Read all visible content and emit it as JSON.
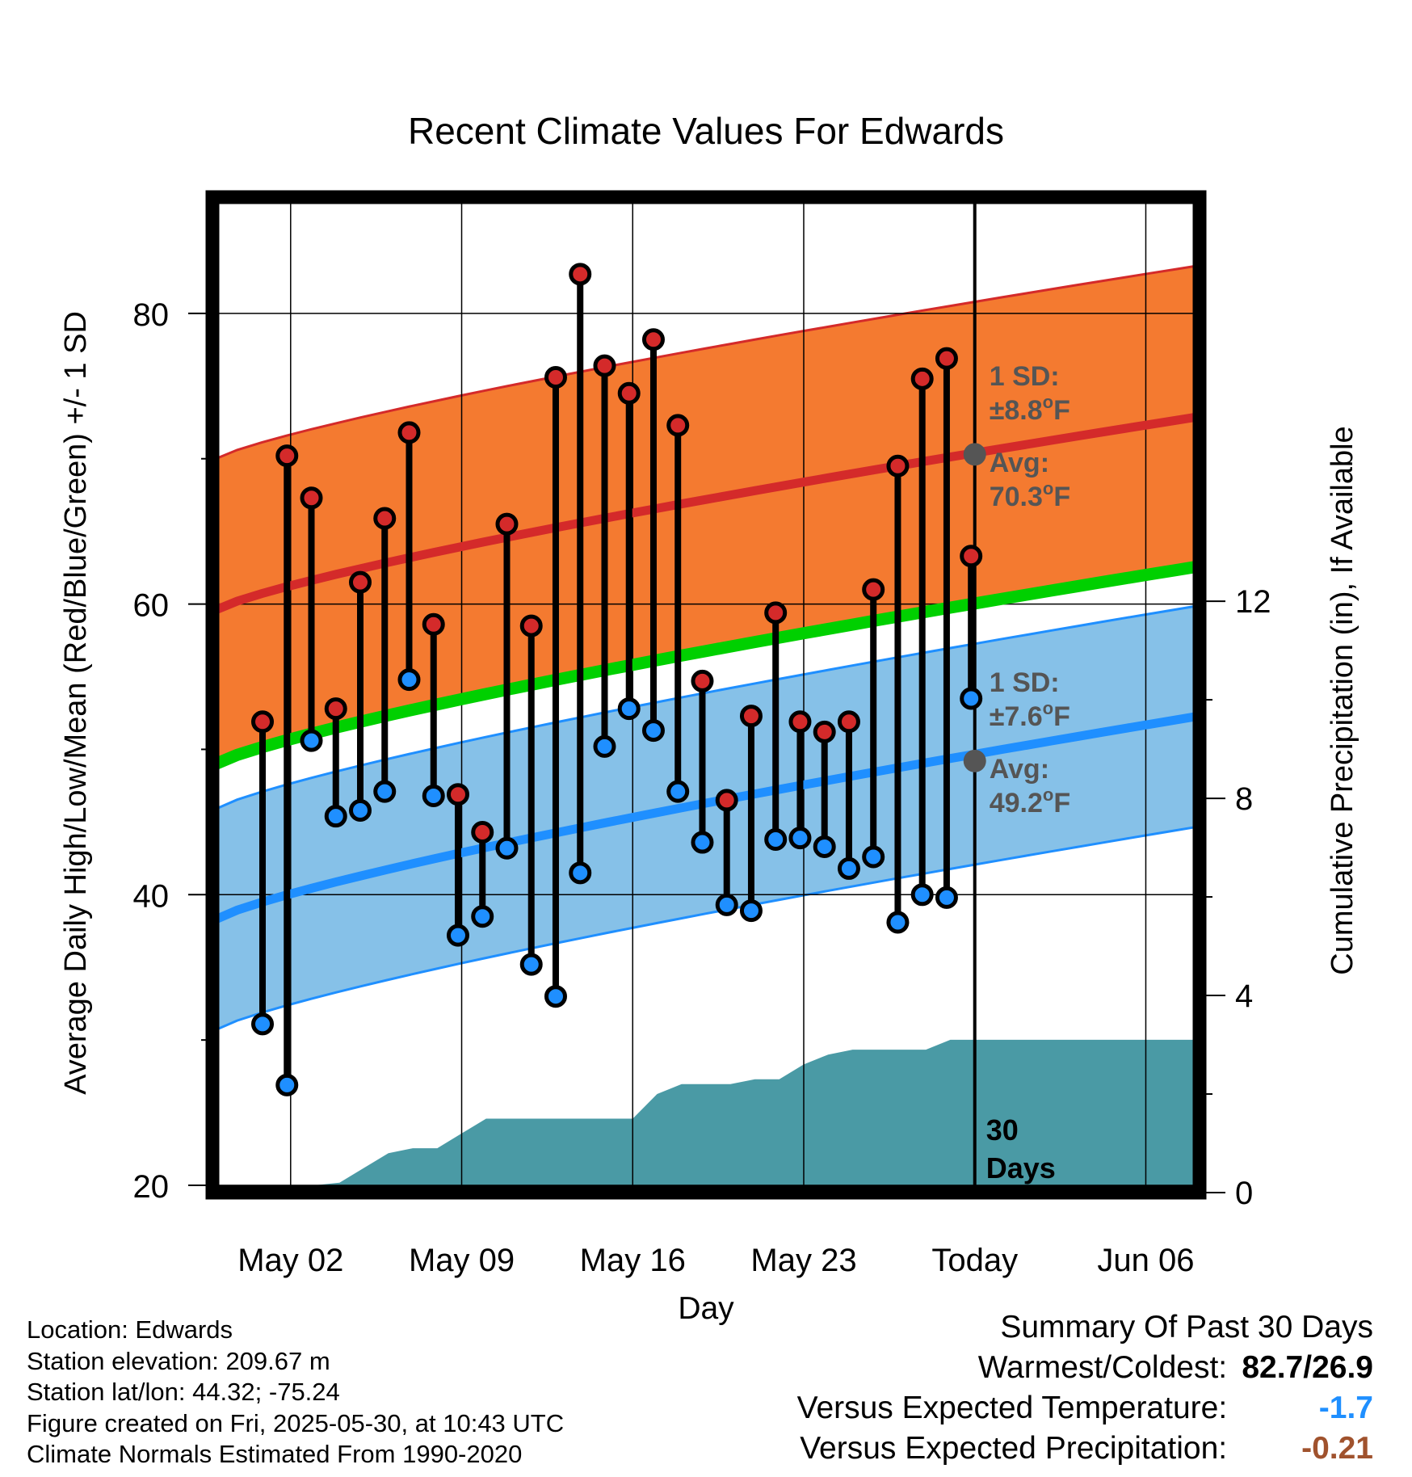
{
  "chart_data": {
    "type": "line",
    "title": "Recent Climate Values For Edwards",
    "xlabel": "Day",
    "ylabel": "Average Daily High/Low/Mean (Red/Blue/Green) +/- 1 SD",
    "y2label": "Cumulative Precipitation (in), If Available",
    "x_ticks": [
      {
        "day": 2,
        "label": "May 02"
      },
      {
        "day": 9,
        "label": "May 09"
      },
      {
        "day": 16,
        "label": "May 16"
      },
      {
        "day": 23,
        "label": "May 23"
      },
      {
        "day": 30,
        "label": "Today"
      },
      {
        "day": 37,
        "label": "Jun 06"
      }
    ],
    "xlim_days": [
      -1.2,
      39.2
    ],
    "ylim": [
      19.5,
      88
    ],
    "y_ticks": [
      20,
      40,
      60,
      80
    ],
    "y2lim": [
      0,
      20.2
    ],
    "y2_ticks": [
      0,
      4,
      8,
      12
    ],
    "grid": true,
    "days": [
      0.85,
      1.85,
      2.85,
      3.85,
      4.85,
      5.85,
      6.85,
      7.85,
      8.85,
      9.85,
      10.85,
      11.85,
      12.85,
      13.85,
      14.85,
      15.85,
      16.85,
      17.85,
      18.85,
      19.85,
      20.85,
      21.85,
      22.85,
      23.85,
      24.85,
      25.85,
      26.85,
      27.85,
      28.85,
      29.85
    ],
    "daily_high": [
      51.9,
      70.2,
      67.3,
      52.8,
      61.5,
      65.9,
      71.8,
      58.6,
      46.9,
      44.3,
      65.5,
      58.5,
      75.6,
      82.7,
      76.4,
      74.5,
      78.2,
      72.3,
      54.7,
      46.5,
      52.3,
      59.4,
      51.9,
      51.2,
      51.9,
      61.0,
      69.5,
      75.5,
      76.9,
      63.3
    ],
    "daily_low": [
      31.1,
      26.9,
      50.6,
      45.4,
      45.8,
      47.1,
      54.8,
      46.8,
      37.2,
      38.5,
      43.2,
      35.2,
      33.0,
      41.5,
      50.2,
      52.8,
      51.3,
      47.1,
      43.6,
      39.3,
      38.9,
      43.8,
      43.9,
      43.3,
      41.8,
      42.6,
      38.1,
      40.0,
      39.8,
      53.5
    ],
    "normal_high_mean": {
      "start": 59.5,
      "end": 72.9
    },
    "normal_low_mean": {
      "start": 38.2,
      "end": 52.3
    },
    "normal_mean": {
      "start": 48.9,
      "end": 62.6
    },
    "precip_cumulative": [
      [
        -1.2,
        0
      ],
      [
        2.3,
        0
      ],
      [
        3.0,
        0.15
      ],
      [
        4.0,
        0.2
      ],
      [
        5.0,
        0.5
      ],
      [
        6.0,
        0.8
      ],
      [
        7.0,
        0.9
      ],
      [
        8.0,
        0.9
      ],
      [
        9.0,
        1.2
      ],
      [
        10.0,
        1.5
      ],
      [
        11.0,
        1.5
      ],
      [
        12.0,
        1.5
      ],
      [
        13.0,
        1.5
      ],
      [
        14.0,
        1.5
      ],
      [
        15.0,
        1.5
      ],
      [
        16.0,
        1.5
      ],
      [
        17.0,
        2.0
      ],
      [
        18.0,
        2.2
      ],
      [
        19.0,
        2.2
      ],
      [
        20.0,
        2.2
      ],
      [
        21.0,
        2.3
      ],
      [
        22.0,
        2.3
      ],
      [
        23.0,
        2.6
      ],
      [
        24.0,
        2.8
      ],
      [
        25.0,
        2.9
      ],
      [
        26.0,
        2.9
      ],
      [
        27.0,
        2.9
      ],
      [
        28.0,
        2.9
      ],
      [
        29.0,
        3.1
      ],
      [
        30.0,
        3.1
      ],
      [
        39.2,
        3.1
      ]
    ],
    "annotations": {
      "high_sd": {
        "line1": "1 SD:",
        "line2": "±8.8",
        "deg": "o",
        "unit": "F"
      },
      "high_avg": {
        "line1": "Avg:",
        "line2": "70.3",
        "deg": "o",
        "unit": "F"
      },
      "low_sd": {
        "line1": "1 SD:",
        "line2": "±7.6",
        "deg": "o",
        "unit": "F"
      },
      "low_avg": {
        "line1": "Avg:",
        "line2": "49.2",
        "deg": "o",
        "unit": "F"
      },
      "today_high_avg": 70.3,
      "today_low_avg": 49.2,
      "window": {
        "line1": "30",
        "line2": "Days"
      }
    },
    "colors": {
      "high_band": "#f47a30",
      "high_line": "#d42a2a",
      "low_band": "#86c1e8",
      "low_line": "#1f8fff",
      "mean_line": "#00d000",
      "precip": "#4a9aa5",
      "high_dot": "#d42a2a",
      "low_dot": "#1f8fff",
      "annotation_text": "#555555"
    }
  },
  "info": {
    "location": "Location: Edwards",
    "elevation": "Station elevation: 209.67 m",
    "latlon": "Station lat/lon: 44.32; -75.24",
    "created": "Figure created on Fri, 2025-05-30, at 10:43 UTC",
    "normals": "Climate Normals Estimated From 1990-2020"
  },
  "summary": {
    "title": "Summary Of Past 30 Days",
    "warmest_label": "Warmest/Coldest:",
    "warmest_value": "82.7/26.9",
    "temp_label": "Versus Expected Temperature:",
    "temp_value": "-1.7",
    "temp_color": "#1f8fff",
    "precip_label": "Versus Expected Precipitation:",
    "precip_value": "-0.21",
    "precip_color": "#a0522d"
  }
}
